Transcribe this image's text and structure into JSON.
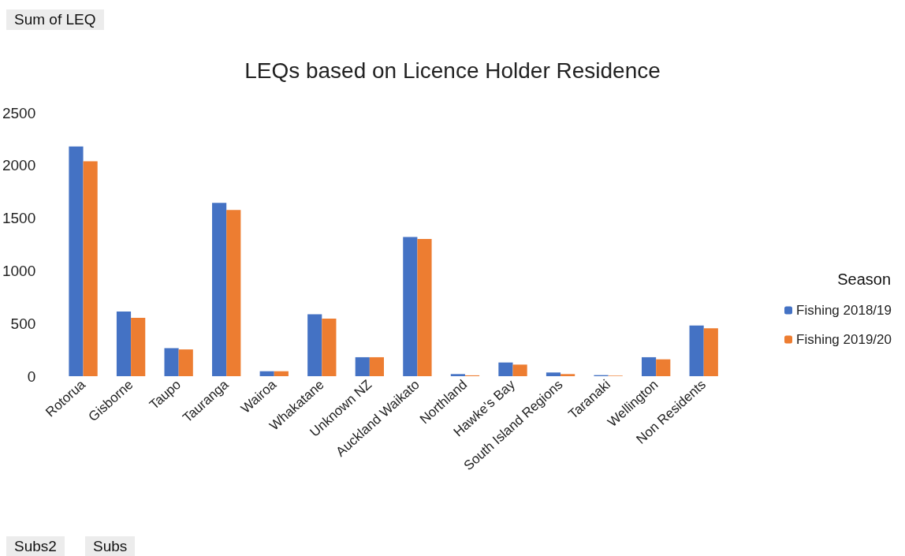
{
  "chart_data": {
    "type": "bar",
    "title": "LEQs based on Licence Holder Residence",
    "categories": [
      "Rotorua",
      "Gisborne",
      "Taupo",
      "Tauranga",
      "Wairoa",
      "Whakatane",
      "Unknown NZ",
      "Auckland Waikato",
      "Northland",
      "Hawke's Bay",
      "South Island Regions",
      "Taranaki",
      "Wellington",
      "Non Residents"
    ],
    "series": [
      {
        "name": "Fishing 2018/19",
        "color": "#4472c4",
        "values": [
          2180,
          614,
          266,
          1644,
          47,
          588,
          180,
          1322,
          20,
          130,
          35,
          10,
          180,
          480
        ]
      },
      {
        "name": "Fishing 2019/20",
        "color": "#ed7d31",
        "values": [
          2040,
          554,
          254,
          1577,
          47,
          546,
          180,
          1302,
          8,
          110,
          20,
          5,
          160,
          455
        ]
      }
    ],
    "ylim": [
      0,
      2500
    ],
    "yticks": [
      0,
      500,
      1000,
      1500,
      2000,
      2500
    ],
    "grid": false,
    "legend": "right",
    "legend_title": "Season",
    "annotations": [
      "Sum of LEQ",
      "Subs2",
      "Subs"
    ]
  }
}
